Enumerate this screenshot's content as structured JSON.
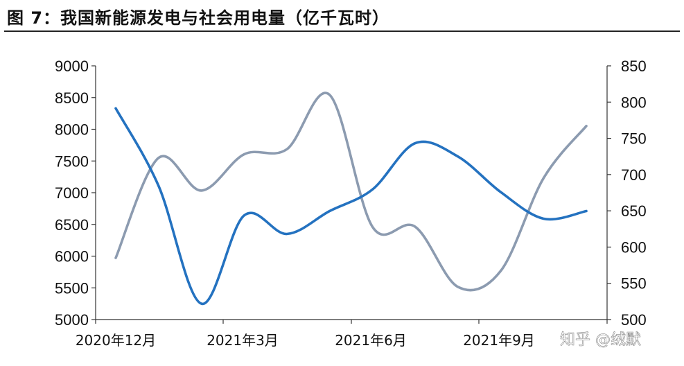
{
  "title": "图 7：我国新能源发电与社会用电量（亿千瓦时）",
  "watermark": "知乎 @绒默",
  "chart_data": {
    "type": "line",
    "x_labels": [
      "2020年12月",
      "2021年3月",
      "2021年6月",
      "2021年9月"
    ],
    "x_label_index": [
      0,
      3,
      6,
      9
    ],
    "x": [
      "2020-12",
      "2021-01",
      "2021-02",
      "2021-03",
      "2021-04",
      "2021-05",
      "2021-06",
      "2021-07",
      "2021-08",
      "2021-09",
      "2021-10",
      "2021-11"
    ],
    "y_left": {
      "min": 5000,
      "max": 9000,
      "ticks": [
        5000,
        5500,
        6000,
        6500,
        7000,
        7500,
        8000,
        8500,
        9000
      ]
    },
    "y_right": {
      "min": 500,
      "max": 850,
      "ticks": [
        500,
        550,
        600,
        650,
        700,
        750,
        800,
        850
      ]
    },
    "series": [
      {
        "axis": "left",
        "color": "#2472C0",
        "values": [
          8330,
          7110,
          5250,
          6640,
          6350,
          6710,
          7050,
          7780,
          7570,
          7010,
          6590,
          6710
        ]
      },
      {
        "axis": "right",
        "color": "#8C9BB0",
        "values": [
          585,
          723,
          678,
          728,
          735,
          810,
          628,
          628,
          545,
          567,
          695,
          767
        ]
      }
    ],
    "grid": false,
    "legend": "none"
  }
}
